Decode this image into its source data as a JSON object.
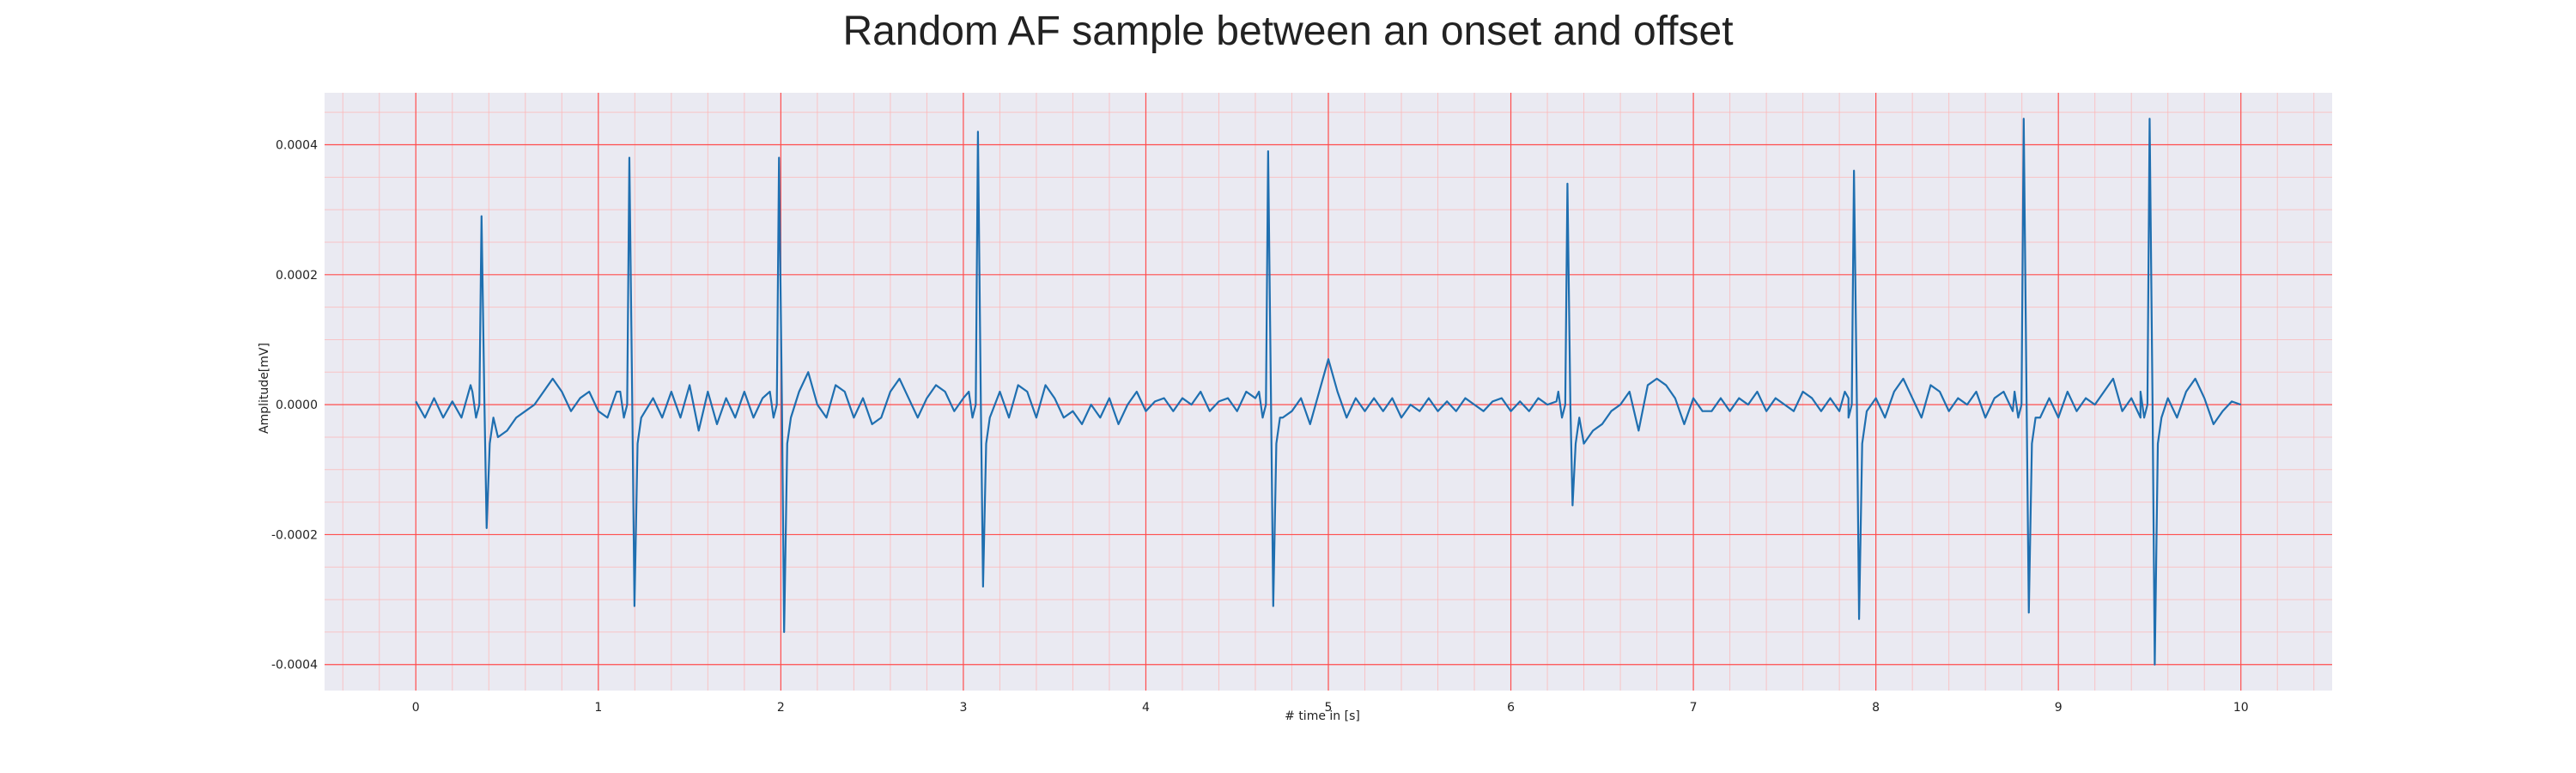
{
  "chart_data": {
    "type": "line",
    "title": "Random AF sample between an onset and offset",
    "xlabel": "# time in [s]",
    "ylabel": "Amplitude[mV]",
    "xlim": [
      -0.5,
      10.5
    ],
    "ylim": [
      -0.00044,
      0.00048
    ],
    "x_ticks": [
      0,
      1,
      2,
      3,
      4,
      5,
      6,
      7,
      8,
      9,
      10
    ],
    "x_tick_labels": [
      "0",
      "1",
      "2",
      "3",
      "4",
      "5",
      "6",
      "7",
      "8",
      "9",
      "10"
    ],
    "y_ticks": [
      -0.0004,
      -0.0002,
      0.0,
      0.0002,
      0.0004
    ],
    "y_tick_labels": [
      "-0.0004",
      "-0.0002",
      "0.0000",
      "0.0002",
      "0.0004"
    ],
    "x_minor_step": 0.2,
    "y_minor_step": 5e-05,
    "grid": true,
    "colors": {
      "line": "#1f6fb0",
      "plot_background": "#eaeaf2",
      "major_grid": "#ff4d4d",
      "minor_grid": "#ffb3b3"
    },
    "series": [
      {
        "beats": [
          {
            "t": 0.36,
            "r": 0.00029,
            "s": -0.00019
          },
          {
            "t": 1.17,
            "r": 0.00038,
            "s": -0.00031
          },
          {
            "t": 1.99,
            "r": 0.00038,
            "s": -0.00035
          },
          {
            "t": 3.08,
            "r": 0.00042,
            "s": -0.00028
          },
          {
            "t": 4.67,
            "r": 0.00039,
            "s": -0.00031
          },
          {
            "t": 6.31,
            "r": 0.00034,
            "s": -0.000155
          },
          {
            "t": 7.88,
            "r": 0.00036,
            "s": -0.00033
          },
          {
            "t": 8.81,
            "r": 0.00044,
            "s": -0.00032
          },
          {
            "t": 9.5,
            "r": 0.00044,
            "s": -0.0004
          }
        ],
        "baseline_points": [
          [
            0.0,
            5e-06
          ],
          [
            0.05,
            -2e-05
          ],
          [
            0.1,
            1e-05
          ],
          [
            0.15,
            -2e-05
          ],
          [
            0.2,
            5e-06
          ],
          [
            0.25,
            -2e-05
          ],
          [
            0.3,
            3e-05
          ],
          [
            0.45,
            -5e-05
          ],
          [
            0.5,
            -4e-05
          ],
          [
            0.55,
            -2e-05
          ],
          [
            0.6,
            -1e-05
          ],
          [
            0.65,
            0.0
          ],
          [
            0.7,
            2e-05
          ],
          [
            0.75,
            4e-05
          ],
          [
            0.8,
            2e-05
          ],
          [
            0.85,
            -1e-05
          ],
          [
            0.9,
            1e-05
          ],
          [
            0.95,
            2e-05
          ],
          [
            1.0,
            -1e-05
          ],
          [
            1.05,
            -2e-05
          ],
          [
            1.1,
            2e-05
          ],
          [
            1.3,
            1e-05
          ],
          [
            1.35,
            -2e-05
          ],
          [
            1.4,
            2e-05
          ],
          [
            1.45,
            -2e-05
          ],
          [
            1.5,
            3e-05
          ],
          [
            1.55,
            -4e-05
          ],
          [
            1.6,
            2e-05
          ],
          [
            1.65,
            -3e-05
          ],
          [
            1.7,
            1e-05
          ],
          [
            1.75,
            -2e-05
          ],
          [
            1.8,
            2e-05
          ],
          [
            1.85,
            -2e-05
          ],
          [
            1.9,
            1e-05
          ],
          [
            2.1,
            2e-05
          ],
          [
            2.15,
            5e-05
          ],
          [
            2.2,
            0.0
          ],
          [
            2.25,
            -2e-05
          ],
          [
            2.3,
            3e-05
          ],
          [
            2.35,
            2e-05
          ],
          [
            2.4,
            -2e-05
          ],
          [
            2.45,
            1e-05
          ],
          [
            2.5,
            -3e-05
          ],
          [
            2.55,
            -2e-05
          ],
          [
            2.6,
            2e-05
          ],
          [
            2.65,
            4e-05
          ],
          [
            2.7,
            1e-05
          ],
          [
            2.75,
            -2e-05
          ],
          [
            2.8,
            1e-05
          ],
          [
            2.85,
            3e-05
          ],
          [
            2.9,
            2e-05
          ],
          [
            2.95,
            -1e-05
          ],
          [
            3.0,
            1e-05
          ],
          [
            3.2,
            2e-05
          ],
          [
            3.25,
            -2e-05
          ],
          [
            3.3,
            3e-05
          ],
          [
            3.35,
            2e-05
          ],
          [
            3.4,
            -2e-05
          ],
          [
            3.45,
            3e-05
          ],
          [
            3.5,
            1e-05
          ],
          [
            3.55,
            -2e-05
          ],
          [
            3.6,
            -1e-05
          ],
          [
            3.65,
            -3e-05
          ],
          [
            3.7,
            0.0
          ],
          [
            3.75,
            -2e-05
          ],
          [
            3.8,
            1e-05
          ],
          [
            3.85,
            -3e-05
          ],
          [
            3.9,
            0.0
          ],
          [
            3.95,
            2e-05
          ],
          [
            4.0,
            -1e-05
          ],
          [
            4.05,
            5e-06
          ],
          [
            4.1,
            1e-05
          ],
          [
            4.15,
            -1e-05
          ],
          [
            4.2,
            1e-05
          ],
          [
            4.25,
            0.0
          ],
          [
            4.3,
            2e-05
          ],
          [
            4.35,
            -1e-05
          ],
          [
            4.4,
            5e-06
          ],
          [
            4.45,
            1e-05
          ],
          [
            4.5,
            -1e-05
          ],
          [
            4.55,
            2e-05
          ],
          [
            4.6,
            1e-05
          ],
          [
            4.75,
            -2e-05
          ],
          [
            4.8,
            -1e-05
          ],
          [
            4.85,
            1e-05
          ],
          [
            4.9,
            -3e-05
          ],
          [
            4.95,
            2e-05
          ],
          [
            5.0,
            7e-05
          ],
          [
            5.05,
            2e-05
          ],
          [
            5.1,
            -2e-05
          ],
          [
            5.15,
            1e-05
          ],
          [
            5.2,
            -1e-05
          ],
          [
            5.25,
            1e-05
          ],
          [
            5.3,
            -1e-05
          ],
          [
            5.35,
            1e-05
          ],
          [
            5.4,
            -2e-05
          ],
          [
            5.45,
            0.0
          ],
          [
            5.5,
            -1e-05
          ],
          [
            5.55,
            1e-05
          ],
          [
            5.6,
            -1e-05
          ],
          [
            5.65,
            5e-06
          ],
          [
            5.7,
            -1e-05
          ],
          [
            5.75,
            1e-05
          ],
          [
            5.8,
            0.0
          ],
          [
            5.85,
            -1e-05
          ],
          [
            5.9,
            5e-06
          ],
          [
            5.95,
            1e-05
          ],
          [
            6.0,
            -1e-05
          ],
          [
            6.05,
            5e-06
          ],
          [
            6.1,
            -1e-05
          ],
          [
            6.15,
            1e-05
          ],
          [
            6.2,
            0.0
          ],
          [
            6.25,
            5e-06
          ],
          [
            6.4,
            -6e-05
          ],
          [
            6.45,
            -4e-05
          ],
          [
            6.5,
            -3e-05
          ],
          [
            6.55,
            -1e-05
          ],
          [
            6.6,
            0.0
          ],
          [
            6.65,
            2e-05
          ],
          [
            6.7,
            -4e-05
          ],
          [
            6.75,
            3e-05
          ],
          [
            6.8,
            4e-05
          ],
          [
            6.85,
            3e-05
          ],
          [
            6.9,
            1e-05
          ],
          [
            6.95,
            -3e-05
          ],
          [
            7.0,
            1e-05
          ],
          [
            7.05,
            -1e-05
          ],
          [
            7.1,
            -1e-05
          ],
          [
            7.15,
            1e-05
          ],
          [
            7.2,
            -1e-05
          ],
          [
            7.25,
            1e-05
          ],
          [
            7.3,
            0.0
          ],
          [
            7.35,
            2e-05
          ],
          [
            7.4,
            -1e-05
          ],
          [
            7.45,
            1e-05
          ],
          [
            7.5,
            0.0
          ],
          [
            7.55,
            -1e-05
          ],
          [
            7.6,
            2e-05
          ],
          [
            7.65,
            1e-05
          ],
          [
            7.7,
            -1e-05
          ],
          [
            7.75,
            1e-05
          ],
          [
            7.8,
            -1e-05
          ],
          [
            7.85,
            1e-05
          ],
          [
            7.95,
            -1e-05
          ],
          [
            8.0,
            1e-05
          ],
          [
            8.05,
            -2e-05
          ],
          [
            8.1,
            2e-05
          ],
          [
            8.15,
            4e-05
          ],
          [
            8.2,
            1e-05
          ],
          [
            8.25,
            -2e-05
          ],
          [
            8.3,
            3e-05
          ],
          [
            8.35,
            2e-05
          ],
          [
            8.4,
            -1e-05
          ],
          [
            8.45,
            1e-05
          ],
          [
            8.5,
            0.0
          ],
          [
            8.55,
            2e-05
          ],
          [
            8.6,
            -2e-05
          ],
          [
            8.65,
            1e-05
          ],
          [
            8.7,
            2e-05
          ],
          [
            8.75,
            -1e-05
          ],
          [
            8.9,
            -2e-05
          ],
          [
            8.95,
            1e-05
          ],
          [
            9.0,
            -2e-05
          ],
          [
            9.05,
            2e-05
          ],
          [
            9.1,
            -1e-05
          ],
          [
            9.15,
            1e-05
          ],
          [
            9.2,
            0.0
          ],
          [
            9.25,
            2e-05
          ],
          [
            9.3,
            4e-05
          ],
          [
            9.35,
            -1e-05
          ],
          [
            9.4,
            1e-05
          ],
          [
            9.45,
            -2e-05
          ],
          [
            9.6,
            1e-05
          ],
          [
            9.65,
            -2e-05
          ],
          [
            9.7,
            2e-05
          ],
          [
            9.75,
            4e-05
          ],
          [
            9.8,
            1e-05
          ],
          [
            9.85,
            -3e-05
          ],
          [
            9.9,
            -1e-05
          ],
          [
            9.95,
            5e-06
          ],
          [
            10.0,
            0.0
          ]
        ]
      }
    ]
  }
}
